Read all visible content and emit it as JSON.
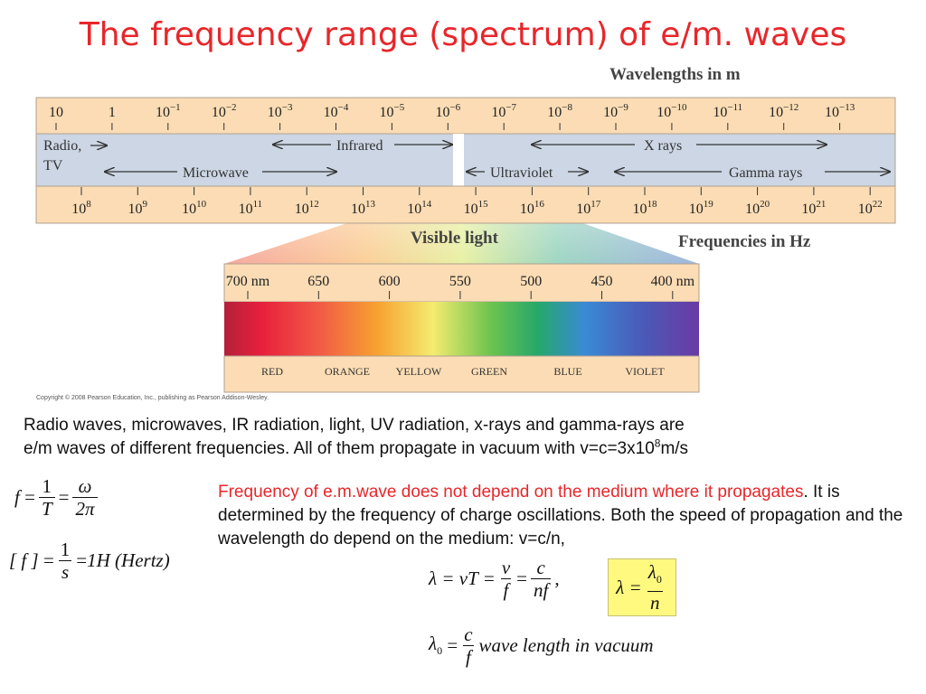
{
  "title": "The frequency range (spectrum) of e/m. waves",
  "spectrum": {
    "wavelengths_label": "Wavelengths in m",
    "frequencies_label": "Frequencies in Hz",
    "wavelength_ticks": [
      {
        "base": "10",
        "exp": ""
      },
      {
        "base": "1",
        "exp": ""
      },
      {
        "base": "10",
        "exp": "−1"
      },
      {
        "base": "10",
        "exp": "−2"
      },
      {
        "base": "10",
        "exp": "−3"
      },
      {
        "base": "10",
        "exp": "−4"
      },
      {
        "base": "10",
        "exp": "−5"
      },
      {
        "base": "10",
        "exp": "−6"
      },
      {
        "base": "10",
        "exp": "−7"
      },
      {
        "base": "10",
        "exp": "−8"
      },
      {
        "base": "10",
        "exp": "−9"
      },
      {
        "base": "10",
        "exp": "−10"
      },
      {
        "base": "10",
        "exp": "−11"
      },
      {
        "base": "10",
        "exp": "−12"
      },
      {
        "base": "10",
        "exp": "−13"
      }
    ],
    "frequency_ticks": [
      {
        "base": "10",
        "exp": "8"
      },
      {
        "base": "10",
        "exp": "9"
      },
      {
        "base": "10",
        "exp": "10"
      },
      {
        "base": "10",
        "exp": "11"
      },
      {
        "base": "10",
        "exp": "12"
      },
      {
        "base": "10",
        "exp": "13"
      },
      {
        "base": "10",
        "exp": "14"
      },
      {
        "base": "10",
        "exp": "15"
      },
      {
        "base": "10",
        "exp": "16"
      },
      {
        "base": "10",
        "exp": "17"
      },
      {
        "base": "10",
        "exp": "18"
      },
      {
        "base": "10",
        "exp": "19"
      },
      {
        "base": "10",
        "exp": "20"
      },
      {
        "base": "10",
        "exp": "21"
      },
      {
        "base": "10",
        "exp": "22"
      }
    ],
    "regions": {
      "radio_line1": "Radio,",
      "radio_line2": "TV",
      "infrared": "Infrared",
      "microwave": "Microwave",
      "x_rays": "X rays",
      "ultraviolet": "Ultraviolet",
      "gamma_rays": "Gamma rays"
    },
    "visible_light_label": "Visible light",
    "visible_ticks": [
      "700 nm",
      "650",
      "600",
      "550",
      "500",
      "450",
      "400 nm"
    ],
    "colors": [
      "RED",
      "ORANGE",
      "YELLOW",
      "GREEN",
      "BLUE",
      "VIOLET"
    ],
    "copyright": "Copyright © 2008 Pearson Education, Inc., publishing as Pearson Addison-Wesley.",
    "band_color": "#fbdcb4",
    "region_band_color": "#ccd6e4"
  },
  "text": {
    "para1_line1": "Radio waves, microwaves, IR radiation, light,  UV radiation, x-rays and gamma-rays are",
    "para1_line2_pre": "e/m waves of different frequencies. All of them propagate in vacuum with v=c=3x10",
    "para1_line2_sup": "8",
    "para1_line2_post": "m/s",
    "para2_red": "Frequency of e.m.wave does not depend on the medium where it propagates",
    "para2_rest": ". It is determined by the frequency of charge oscillations. Both the speed of propagation and the wavelength do depend on the medium: v=c/n,"
  },
  "formulas": {
    "f_eq": "f",
    "one": "1",
    "T": "T",
    "omega": "ω",
    "two_pi": "2π",
    "unit_lhs": "[ f ]",
    "s": "s",
    "unit_rhs": "1H (Hertz)",
    "lambda_eq": "λ = vT =",
    "v": "v",
    "f": "f",
    "c": "c",
    "nf": "nf",
    "lambda": "λ =",
    "lambda0": "λ",
    "n": "n",
    "lambda0_lhs": "λ",
    "wave_length_in_vacuum": "wave length in vacuum",
    "highlight_color": "#fff980"
  }
}
